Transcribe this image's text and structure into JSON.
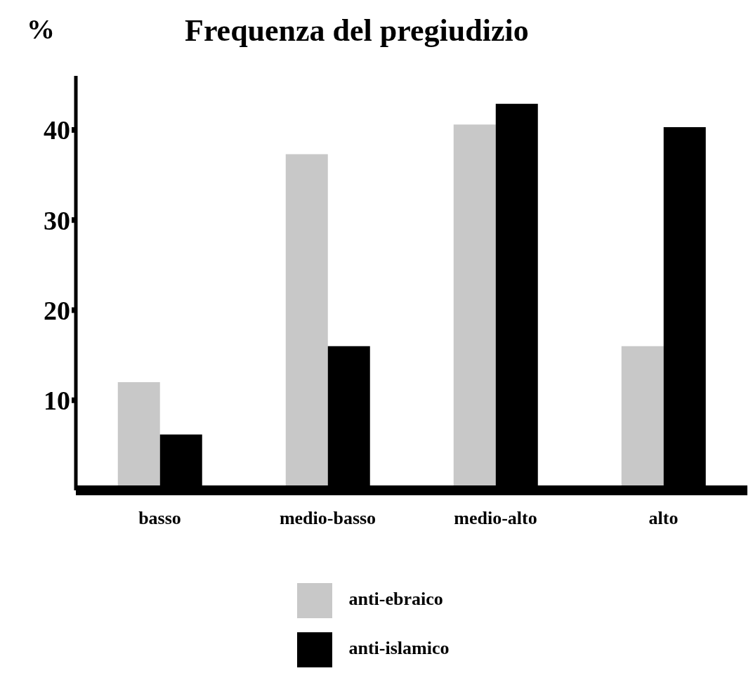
{
  "chart_data": {
    "type": "bar",
    "title": "Frequenza del pregiudizio",
    "ylabel": "%",
    "categories": [
      "basso",
      "medio-basso",
      "medio-alto",
      "alto"
    ],
    "series": [
      {
        "name": "anti-ebraico",
        "color": "#c8c8c8",
        "values": [
          12,
          37.3,
          40.6,
          16
        ]
      },
      {
        "name": "anti-islamico",
        "color": "#000000",
        "values": [
          6.2,
          16,
          42.9,
          40.3
        ]
      }
    ],
    "ylim": [
      0,
      46
    ],
    "yticks": [
      10,
      20,
      30,
      40
    ],
    "grid": false,
    "legend": "bottom"
  }
}
